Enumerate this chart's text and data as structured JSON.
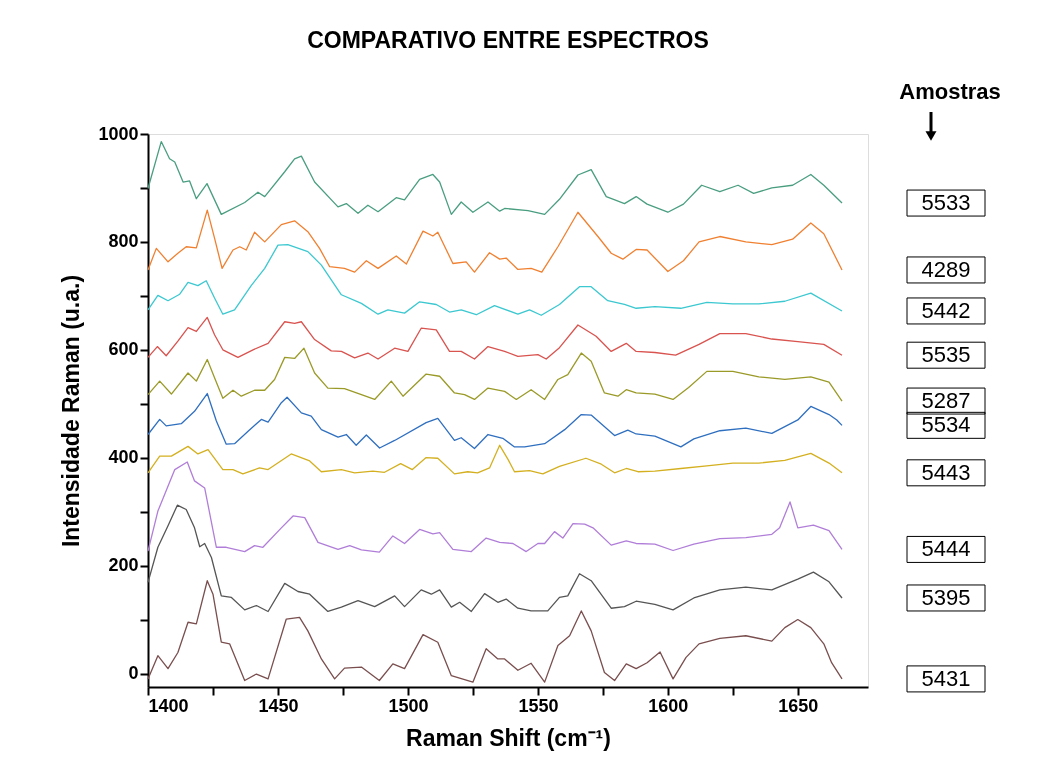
{
  "chart_data": {
    "type": "line",
    "title": "COMPARATIVO ENTRE ESPECTROS",
    "xlabel": "Raman Shift (cm⁻¹)",
    "ylabel": "Intensidade Raman (u.a.)",
    "annotations": [
      "Amostras"
    ],
    "xlim": [
      1400,
      1677
    ],
    "ylim": [
      -25,
      1000
    ],
    "xticks": [
      1400,
      {
        "value": 1425,
        "label": null
      },
      1450,
      {
        "value": 1475,
        "label": null
      },
      1500,
      {
        "value": 1525,
        "label": null
      },
      1550,
      {
        "value": 1575,
        "label": null
      },
      1600,
      {
        "value": 1625,
        "label": null
      },
      1650
    ],
    "yticks": [
      0,
      {
        "value": 100,
        "label": null
      },
      200,
      {
        "value": 300,
        "label": null
      },
      400,
      {
        "value": 500,
        "label": null
      },
      600,
      {
        "value": 700,
        "label": null
      },
      800,
      {
        "value": 900,
        "label": null
      },
      1000
    ],
    "grid": false,
    "line_style": "solid",
    "marker": "none",
    "series": [
      {
        "name": "5533",
        "color": "#4a9e80",
        "x": [
          1400,
          1405.1,
          1408.3,
          1410.3,
          1413.5,
          1416,
          1418.6,
          1422.7,
          1428.2,
          1437.2,
          1442.3,
          1444.9,
          1452.6,
          1456.4,
          1459,
          1464.1,
          1473.1,
          1476.3,
          1480.8,
          1484.6,
          1488.5,
          1495.5,
          1498.7,
          1504.5,
          1509.6,
          1512.2,
          1516.7,
          1520.5,
          1525,
          1530.8,
          1535.3,
          1537.2,
          1546.2,
          1552.6,
          1558.3,
          1565.4,
          1570.5,
          1576.3,
          1580.1,
          1583.3,
          1587.8,
          1592,
          1600,
          1606,
          1613,
          1620,
          1627,
          1633,
          1640,
          1648,
          1655,
          1660,
          1667
        ],
        "values": [
          899,
          986,
          954,
          948,
          911,
          913,
          880,
          908,
          851,
          873,
          892,
          884,
          930,
          954,
          959,
          911,
          865,
          871,
          853,
          868,
          856,
          882,
          878,
          916,
          925,
          911,
          851,
          874,
          855,
          874,
          857,
          862,
          858,
          851,
          879,
          924,
          934,
          884,
          877,
          871,
          884,
          870,
          855,
          870,
          905,
          893,
          905,
          890,
          900,
          905,
          925,
          905,
          872
        ]
      },
      {
        "name": "4289",
        "color": "#f08030",
        "x": [
          1400,
          1403.2,
          1407.7,
          1411.5,
          1414.7,
          1418.6,
          1422.8,
          1425.6,
          1428.5,
          1432.7,
          1435.3,
          1437.8,
          1441,
          1444.9,
          1451.3,
          1456.4,
          1461.5,
          1466,
          1469.9,
          1475.6,
          1479.5,
          1484,
          1488.5,
          1495.5,
          1499.4,
          1505.8,
          1509.6,
          1511.5,
          1517.3,
          1522.4,
          1525.6,
          1531.4,
          1535.3,
          1537.8,
          1542.3,
          1547.4,
          1551.5,
          1557.7,
          1565.4,
          1573.1,
          1578.2,
          1582.7,
          1587.8,
          1592,
          1600,
          1606,
          1612,
          1620,
          1630,
          1640,
          1648,
          1655,
          1660,
          1667
        ],
        "values": [
          748,
          788,
          763,
          779,
          791,
          789,
          859,
          807,
          751,
          785,
          791,
          785,
          818,
          800,
          832,
          839,
          819,
          788,
          754,
          751,
          744,
          765,
          751,
          774,
          759,
          820,
          811,
          818,
          760,
          763,
          744,
          780,
          768,
          770,
          749,
          751,
          744,
          791,
          855,
          810,
          779,
          768,
          786,
          785,
          745,
          765,
          800,
          810,
          800,
          795,
          805,
          835,
          815,
          748
        ]
      },
      {
        "name": "5442",
        "color": "#3cc8d0",
        "x": [
          1400,
          1403.8,
          1407.7,
          1412.2,
          1415.4,
          1419.2,
          1422.4,
          1425.6,
          1428.8,
          1433.3,
          1439.7,
          1444.9,
          1450,
          1453.8,
          1461.5,
          1466.7,
          1474.4,
          1482.1,
          1488.5,
          1492.3,
          1498.7,
          1504.5,
          1510.9,
          1516,
          1520.5,
          1526.3,
          1533.3,
          1542.3,
          1546.8,
          1551.3,
          1558.3,
          1566,
          1570.5,
          1576.9,
          1583.3,
          1587.8,
          1595,
          1605,
          1615,
          1625,
          1635,
          1645,
          1655,
          1667
        ],
        "values": [
          674,
          701,
          691,
          703,
          725,
          719,
          728,
          696,
          666,
          674,
          719,
          751,
          794,
          795,
          782,
          757,
          702,
          686,
          666,
          674,
          668,
          689,
          684,
          670,
          674,
          665,
          682,
          666,
          674,
          664,
          684,
          717,
          717,
          691,
          684,
          677,
          680,
          677,
          688,
          685,
          685,
          690,
          705,
          672
        ]
      },
      {
        "name": "5535",
        "color": "#d9534f",
        "x": [
          1400,
          1403.6,
          1407,
          1411.5,
          1415.4,
          1418.6,
          1422.8,
          1425.6,
          1428.8,
          1434.6,
          1440.4,
          1446.2,
          1452.6,
          1456.4,
          1459,
          1464.1,
          1470.5,
          1474.4,
          1479.5,
          1484.6,
          1488.5,
          1494.9,
          1500,
          1505.1,
          1510.9,
          1516,
          1520.5,
          1525.6,
          1530.8,
          1537.2,
          1542.3,
          1550,
          1553.2,
          1558.3,
          1565.4,
          1572.4,
          1578.2,
          1584,
          1587.8,
          1595,
          1603,
          1612,
          1620,
          1630,
          1640,
          1650,
          1660,
          1667
        ],
        "values": [
          586,
          606,
          589,
          616,
          641,
          634,
          660,
          628,
          600,
          586,
          600,
          612,
          652,
          649,
          652,
          619,
          598,
          597,
          585,
          594,
          583,
          603,
          597,
          640,
          637,
          597,
          597,
          583,
          606,
          597,
          588,
          591,
          583,
          604,
          646,
          625,
          597,
          612,
          597,
          595,
          590,
          610,
          630,
          630,
          620,
          615,
          610,
          590
        ]
      },
      {
        "name": "5287",
        "color": "#9a9a28",
        "x": [
          1400,
          1404.5,
          1409,
          1415.4,
          1418.6,
          1422.8,
          1425.6,
          1428.8,
          1432.7,
          1435.9,
          1441,
          1444.9,
          1448.7,
          1452.6,
          1456.4,
          1460,
          1464.1,
          1469.2,
          1475.6,
          1482.1,
          1487.2,
          1493.6,
          1498.1,
          1507,
          1512.2,
          1517.9,
          1521.8,
          1525.6,
          1530.8,
          1537.2,
          1541.7,
          1547.4,
          1552.6,
          1557.7,
          1561.5,
          1566.7,
          1570.5,
          1575.6,
          1580.8,
          1584,
          1587.8,
          1595,
          1602,
          1608,
          1615,
          1625,
          1635,
          1645,
          1655,
          1662,
          1667
        ],
        "values": [
          517,
          542,
          518,
          557,
          542,
          582,
          548,
          510,
          525,
          514,
          525,
          525,
          545,
          586,
          584,
          603,
          557,
          529,
          528,
          517,
          508,
          542,
          514,
          555,
          551,
          520,
          517,
          508,
          529,
          523,
          508,
          526,
          508,
          545,
          554,
          594,
          579,
          520,
          514,
          526,
          520,
          518,
          508,
          530,
          560,
          560,
          550,
          545,
          550,
          540,
          505
        ]
      },
      {
        "name": "5534",
        "color": "#2f6fc0",
        "x": [
          1400,
          1404.5,
          1407,
          1412.8,
          1417.9,
          1422.8,
          1426.3,
          1430.1,
          1433.3,
          1438.5,
          1443.6,
          1446.2,
          1451.3,
          1453.5,
          1459,
          1462.8,
          1466.7,
          1473.1,
          1476.3,
          1480.1,
          1484,
          1489.1,
          1494.9,
          1507,
          1511.5,
          1517.9,
          1520.5,
          1525.6,
          1530.8,
          1536.5,
          1541,
          1544.9,
          1552.6,
          1560.3,
          1566.7,
          1570.5,
          1579.5,
          1584.6,
          1587.8,
          1595,
          1605,
          1610,
          1620,
          1630,
          1640,
          1650,
          1655,
          1662,
          1665,
          1667
        ],
        "values": [
          443,
          471,
          459,
          463,
          486,
          519,
          468,
          425,
          426,
          449,
          471,
          466,
          502,
          512,
          483,
          477,
          452,
          438,
          443,
          423,
          442,
          418,
          432,
          465,
          473,
          432,
          437,
          417,
          443,
          436,
          420,
          420,
          426,
          452,
          480,
          479,
          441,
          451,
          444,
          440,
          420,
          435,
          450,
          455,
          445,
          470,
          495,
          480,
          470,
          460
        ]
      },
      {
        "name": "5443",
        "color": "#d4b020",
        "x": [
          1400,
          1404.5,
          1409,
          1415.4,
          1419.2,
          1423.1,
          1428.8,
          1432.7,
          1436.5,
          1442.9,
          1446.2,
          1455.1,
          1462.2,
          1466.7,
          1474.4,
          1479.5,
          1486.5,
          1491,
          1497.2,
          1501.7,
          1506.9,
          1511.5,
          1517.9,
          1523,
          1526.8,
          1531.4,
          1535.3,
          1538.5,
          1541,
          1546.8,
          1551.9,
          1558.3,
          1568.5,
          1574.4,
          1579.5,
          1584,
          1588.5,
          1595,
          1605,
          1615,
          1625,
          1635,
          1645,
          1655,
          1662,
          1667
        ],
        "values": [
          372,
          403,
          403,
          421,
          407,
          415,
          378,
          378,
          370,
          381,
          378,
          407,
          394,
          374,
          378,
          372,
          375,
          373,
          389,
          378,
          400,
          399,
          370,
          374,
          372,
          381,
          423,
          397,
          374,
          376,
          370,
          384,
          399,
          388,
          372,
          380,
          374,
          375,
          380,
          385,
          390,
          390,
          395,
          408,
          390,
          372
        ]
      },
      {
        "name": "5444",
        "color": "#b07ed8",
        "x": [
          1400,
          1403.8,
          1410.3,
          1415.1,
          1417.9,
          1421.8,
          1426.3,
          1430.1,
          1437.2,
          1441,
          1444.2,
          1451.3,
          1455.8,
          1460.3,
          1465.4,
          1473.1,
          1477.6,
          1482.1,
          1489,
          1494.2,
          1498.7,
          1504.5,
          1509.6,
          1512.2,
          1517.3,
          1524.4,
          1530.1,
          1535.3,
          1540.4,
          1545.5,
          1550,
          1552.6,
          1556.4,
          1559.6,
          1563.5,
          1568,
          1571.2,
          1578.2,
          1584,
          1587.8,
          1595,
          1602,
          1610,
          1620,
          1630,
          1640,
          1643,
          1647,
          1650,
          1656,
          1662,
          1667
        ],
        "values": [
          227,
          301,
          378,
          392,
          357,
          344,
          234,
          234,
          226,
          237,
          234,
          270,
          292,
          289,
          243,
          230,
          237,
          229,
          225,
          255,
          241,
          267,
          259,
          261,
          230,
          226,
          251,
          243,
          241,
          226,
          241,
          241,
          263,
          251,
          278,
          277,
          270,
          238,
          246,
          241,
          240,
          228,
          240,
          250,
          252,
          258,
          270,
          318,
          270,
          275,
          265,
          230
        ]
      },
      {
        "name": "5395",
        "color": "#555555",
        "x": [
          1400,
          1403.8,
          1407.7,
          1411.3,
          1414.7,
          1417.9,
          1419.9,
          1421.8,
          1424.4,
          1428.2,
          1432.1,
          1437.2,
          1441.7,
          1446.2,
          1452.6,
          1457.7,
          1462.2,
          1469.2,
          1474.4,
          1480.8,
          1487.2,
          1494.9,
          1498.7,
          1505.1,
          1509,
          1512.2,
          1516.7,
          1519.9,
          1524.4,
          1529.5,
          1534.6,
          1537.8,
          1542.3,
          1547.4,
          1553.8,
          1558.3,
          1561.5,
          1566,
          1570.5,
          1578.2,
          1583.3,
          1587.8,
          1595,
          1602,
          1610,
          1620,
          1630,
          1640,
          1650,
          1656,
          1662,
          1667
        ],
        "values": [
          169,
          234,
          274,
          312,
          304,
          270,
          235,
          241,
          215,
          144,
          141,
          118,
          126,
          115,
          167,
          152,
          147,
          115,
          123,
          135,
          124,
          144,
          124,
          155,
          147,
          155,
          123,
          132,
          115,
          148,
          132,
          138,
          121,
          116,
          116,
          141,
          144,
          185,
          172,
          121,
          124,
          134,
          128,
          118,
          140,
          155,
          160,
          155,
          175,
          188,
          170,
          140
        ]
      },
      {
        "name": "5431",
        "color": "#7a4e4e",
        "x": [
          1400,
          1403.8,
          1407.7,
          1411.5,
          1415.4,
          1418.6,
          1422.8,
          1425,
          1428.2,
          1431.4,
          1437.2,
          1441.7,
          1446.2,
          1453.2,
          1458.3,
          1461.5,
          1466.7,
          1471.8,
          1475.6,
          1482.1,
          1489,
          1494.2,
          1498.7,
          1505.8,
          1511.5,
          1516.7,
          1525,
          1530.1,
          1534.6,
          1537.2,
          1542.3,
          1547.4,
          1552.6,
          1557.7,
          1562.2,
          1566.7,
          1570.5,
          1575.6,
          1579.5,
          1584,
          1587.8,
          1592,
          1597,
          1602,
          1607,
          1612,
          1620,
          1630,
          1640,
          1645,
          1650,
          1655,
          1660,
          1663,
          1667
        ],
        "values": [
          -10,
          33,
          9,
          39,
          95,
          92,
          172,
          147,
          58,
          55,
          -13,
          -1,
          -10,
          101,
          104,
          79,
          27,
          -10,
          10,
          12,
          -13,
          18,
          9,
          72,
          58,
          -4,
          -16,
          46,
          27,
          27,
          6,
          19,
          -16,
          52,
          70,
          116,
          79,
          2,
          -13,
          18,
          9,
          20,
          40,
          -10,
          30,
          55,
          65,
          70,
          60,
          85,
          100,
          85,
          55,
          20,
          -10
        ]
      }
    ]
  }
}
